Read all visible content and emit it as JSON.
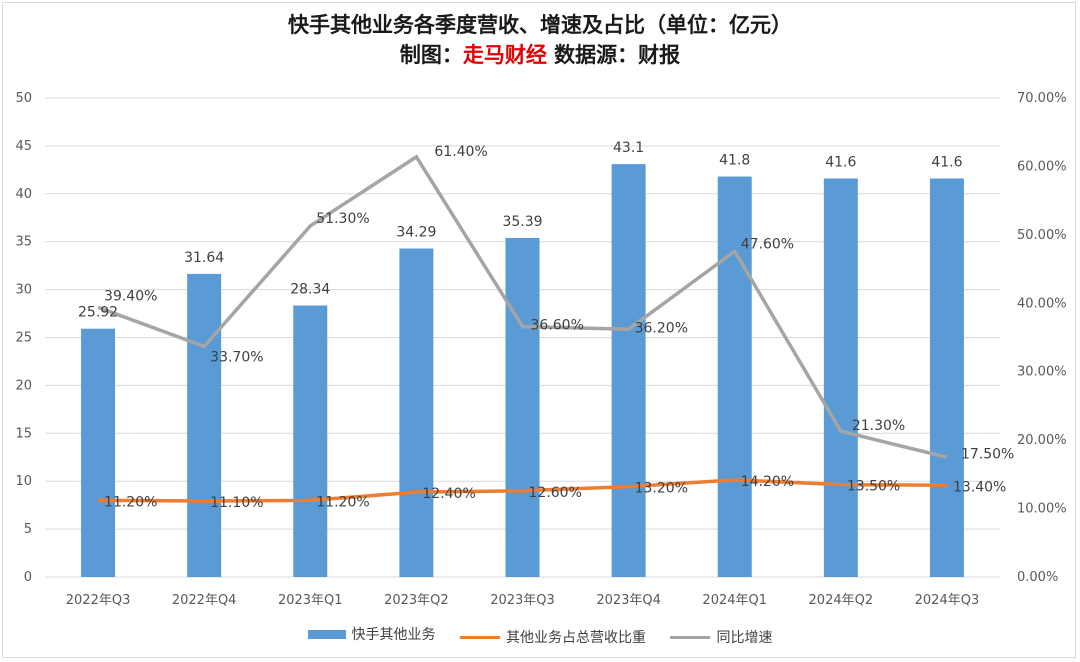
{
  "title": {
    "line1": "快手其他业务各季度营收、增速及占比（单位：亿元）",
    "line2_prefix": "制图：",
    "line2_brand": "走马财经",
    "line2_suffix": " 数据源：财报"
  },
  "colors": {
    "bar": "#5b9bd5",
    "share_line": "#ed7d31",
    "growth_line": "#a5a5a5",
    "grid": "#d9d9d9"
  },
  "chart_data": {
    "type": "bar",
    "categories": [
      "2022年Q3",
      "2022年Q4",
      "2023年Q1",
      "2023年Q2",
      "2023年Q3",
      "2023年Q4",
      "2024年Q1",
      "2024年Q2",
      "2024年Q3"
    ],
    "series": [
      {
        "name": "快手其他业务",
        "kind": "bar",
        "axis": "left",
        "values": [
          25.92,
          31.64,
          28.34,
          34.29,
          35.39,
          43.1,
          41.8,
          41.6,
          41.6
        ],
        "labels": [
          "25.92",
          "31.64",
          "28.34",
          "34.29",
          "35.39",
          "43.1",
          "41.8",
          "41.6",
          "41.6"
        ]
      },
      {
        "name": "其他业务占总营收比重",
        "kind": "line",
        "axis": "right",
        "values": [
          11.2,
          11.1,
          11.2,
          12.4,
          12.6,
          13.2,
          14.2,
          13.5,
          13.4
        ],
        "labels": [
          "11.20%",
          "11.10%",
          "11.20%",
          "12.40%",
          "12.60%",
          "13.20%",
          "14.20%",
          "13.50%",
          "13.40%"
        ]
      },
      {
        "name": "同比增速",
        "kind": "line",
        "axis": "right",
        "values": [
          39.4,
          33.7,
          51.3,
          61.4,
          36.6,
          36.2,
          47.6,
          21.3,
          17.5
        ],
        "labels": [
          "39.40%",
          "33.70%",
          "51.30%",
          "61.40%",
          "36.60%",
          "36.20%",
          "47.60%",
          "21.30%",
          "17.50%"
        ]
      }
    ],
    "left_axis": {
      "min": 0,
      "max": 50,
      "step": 5,
      "ticks": [
        "0",
        "5",
        "10",
        "15",
        "20",
        "25",
        "30",
        "35",
        "40",
        "45",
        "50"
      ]
    },
    "right_axis": {
      "min": 0,
      "max": 70,
      "step": 10,
      "ticks": [
        "0.00%",
        "10.00%",
        "20.00%",
        "30.00%",
        "40.00%",
        "50.00%",
        "60.00%",
        "70.00%"
      ]
    },
    "legend": [
      "快手其他业务",
      "其他业务占总营收比重",
      "同比增速"
    ],
    "legend_position": "bottom",
    "grid": true
  }
}
